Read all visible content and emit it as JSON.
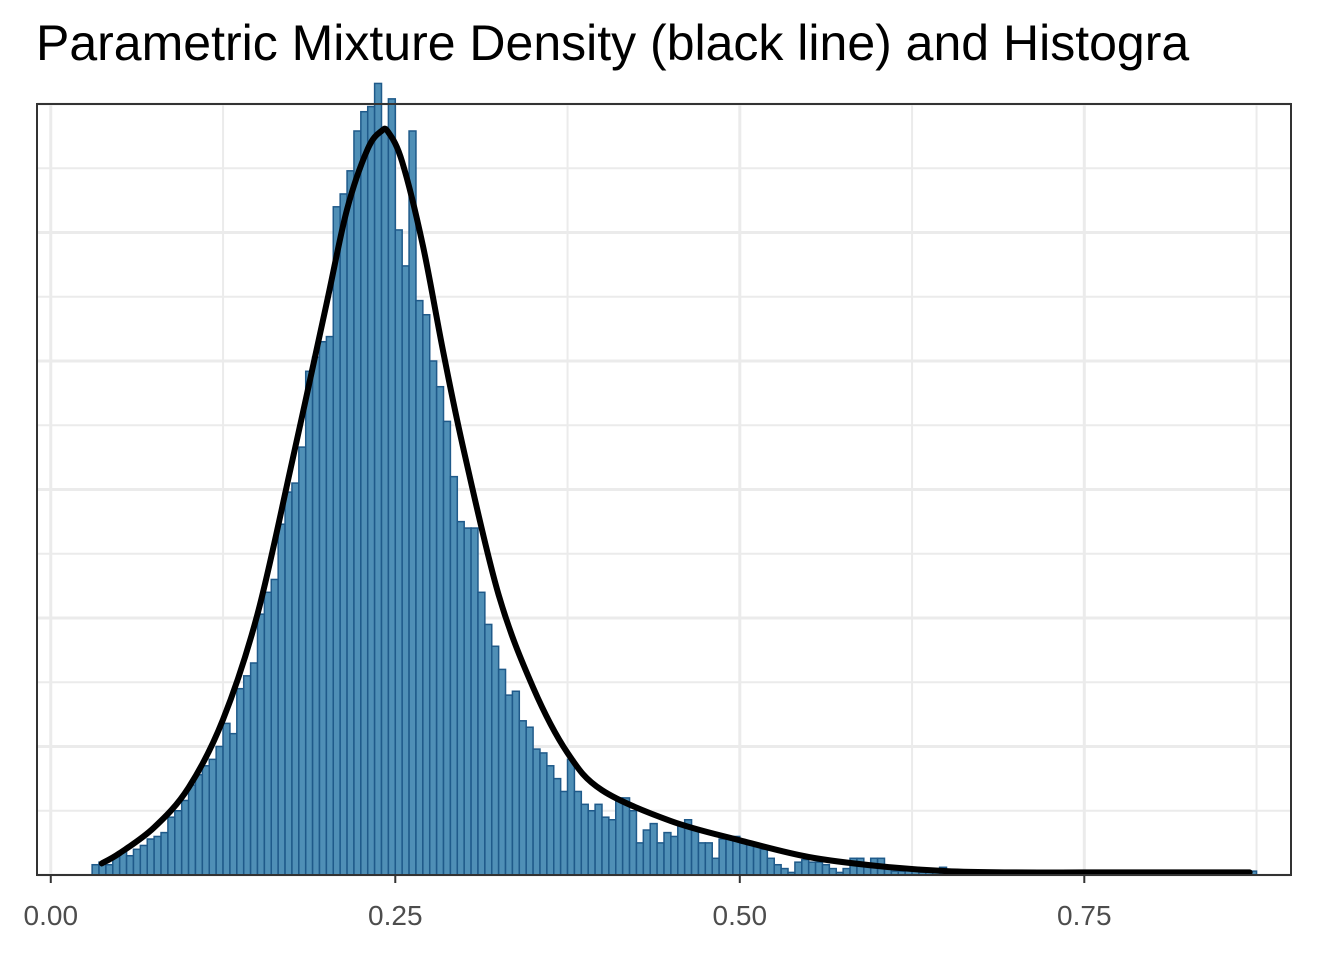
{
  "chart_data": {
    "type": "bar",
    "title": "Parametric Mixture Density (black line) and Histogra",
    "xlabel": "",
    "ylabel": "",
    "xlim": [
      -0.01,
      0.9
    ],
    "ylim": [
      0,
      6.0
    ],
    "x_ticks": [
      "0.00",
      "0.25",
      "0.50",
      "0.75"
    ],
    "x_tick_values": [
      0.0,
      0.25,
      0.5,
      0.75
    ],
    "y_gridlines": [
      0,
      1,
      2,
      3,
      4,
      5,
      6
    ],
    "y_ticks_labeled": false,
    "grid": true,
    "bin_width": 0.005,
    "histogram": {
      "name": "Histogram",
      "bin_starts": [
        0.03,
        0.035,
        0.04,
        0.045,
        0.05,
        0.055,
        0.06,
        0.065,
        0.07,
        0.075,
        0.08,
        0.085,
        0.09,
        0.095,
        0.1,
        0.105,
        0.11,
        0.115,
        0.12,
        0.125,
        0.13,
        0.135,
        0.14,
        0.145,
        0.15,
        0.155,
        0.16,
        0.165,
        0.17,
        0.175,
        0.18,
        0.185,
        0.19,
        0.195,
        0.2,
        0.205,
        0.21,
        0.215,
        0.22,
        0.225,
        0.23,
        0.235,
        0.24,
        0.245,
        0.25,
        0.255,
        0.26,
        0.265,
        0.27,
        0.275,
        0.28,
        0.285,
        0.29,
        0.295,
        0.3,
        0.305,
        0.31,
        0.315,
        0.32,
        0.325,
        0.33,
        0.335,
        0.34,
        0.345,
        0.35,
        0.355,
        0.36,
        0.365,
        0.37,
        0.375,
        0.38,
        0.385,
        0.39,
        0.395,
        0.4,
        0.405,
        0.41,
        0.415,
        0.42,
        0.425,
        0.43,
        0.435,
        0.44,
        0.445,
        0.45,
        0.455,
        0.46,
        0.465,
        0.47,
        0.475,
        0.48,
        0.485,
        0.49,
        0.495,
        0.5,
        0.505,
        0.51,
        0.515,
        0.52,
        0.525,
        0.53,
        0.535,
        0.54,
        0.545,
        0.55,
        0.555,
        0.56,
        0.565,
        0.57,
        0.575,
        0.58,
        0.585,
        0.59,
        0.595,
        0.6,
        0.605,
        0.61,
        0.615,
        0.62,
        0.625,
        0.63,
        0.635,
        0.64,
        0.645,
        0.655,
        0.7,
        0.725,
        0.745,
        0.75,
        0.775,
        0.78,
        0.805,
        0.87
      ],
      "values": [
        0.08,
        0.1,
        0.08,
        0.15,
        0.18,
        0.15,
        0.2,
        0.23,
        0.28,
        0.3,
        0.33,
        0.45,
        0.5,
        0.58,
        0.7,
        0.78,
        0.85,
        0.9,
        1.0,
        1.18,
        1.1,
        1.45,
        1.55,
        1.65,
        2.03,
        2.2,
        2.3,
        2.73,
        2.98,
        3.05,
        3.33,
        3.92,
        4.03,
        4.15,
        4.19,
        5.2,
        5.3,
        5.48,
        5.79,
        5.94,
        5.98,
        6.16,
        5.82,
        6.04,
        5.02,
        4.74,
        5.79,
        4.47,
        4.36,
        4.0,
        3.8,
        3.53,
        3.1,
        2.75,
        2.7,
        2.7,
        2.2,
        1.95,
        1.78,
        1.6,
        1.4,
        1.43,
        1.2,
        1.15,
        0.98,
        0.95,
        0.85,
        0.75,
        0.65,
        0.9,
        0.65,
        0.55,
        0.5,
        0.55,
        0.45,
        0.43,
        0.6,
        0.6,
        0.5,
        0.25,
        0.35,
        0.4,
        0.25,
        0.33,
        0.3,
        0.4,
        0.43,
        0.35,
        0.25,
        0.25,
        0.13,
        0.28,
        0.3,
        0.3,
        0.25,
        0.25,
        0.22,
        0.2,
        0.13,
        0.08,
        0.05,
        0.02,
        0.1,
        0.12,
        0.1,
        0.1,
        0.08,
        0.05,
        0.02,
        0.05,
        0.13,
        0.13,
        0.08,
        0.13,
        0.13,
        0.05,
        0.03,
        0.03,
        0.04,
        0.06,
        0.02,
        0.02,
        0.03,
        0.06,
        0.02,
        0.01,
        0.02,
        0.02,
        0.03,
        0.03,
        0.03,
        0.03,
        0.03,
        0.03,
        0.04
      ],
      "fill": "#4f8fb6",
      "stroke": "#1f5a8a"
    },
    "density": {
      "name": "Parametric Mixture Density",
      "x": [
        0.037,
        0.05,
        0.075,
        0.1,
        0.125,
        0.15,
        0.175,
        0.2,
        0.215,
        0.23,
        0.24,
        0.245,
        0.255,
        0.27,
        0.285,
        0.3,
        0.325,
        0.35,
        0.375,
        0.4,
        0.45,
        0.5,
        0.55,
        0.6,
        0.65,
        0.7,
        0.75,
        0.8,
        0.87
      ],
      "y": [
        0.09,
        0.17,
        0.37,
        0.68,
        1.21,
        2.03,
        3.21,
        4.44,
        5.18,
        5.65,
        5.79,
        5.78,
        5.55,
        4.9,
        4.06,
        3.29,
        2.18,
        1.46,
        0.95,
        0.66,
        0.42,
        0.27,
        0.14,
        0.07,
        0.03,
        0.02,
        0.02,
        0.02,
        0.02
      ],
      "color": "#000000"
    }
  }
}
